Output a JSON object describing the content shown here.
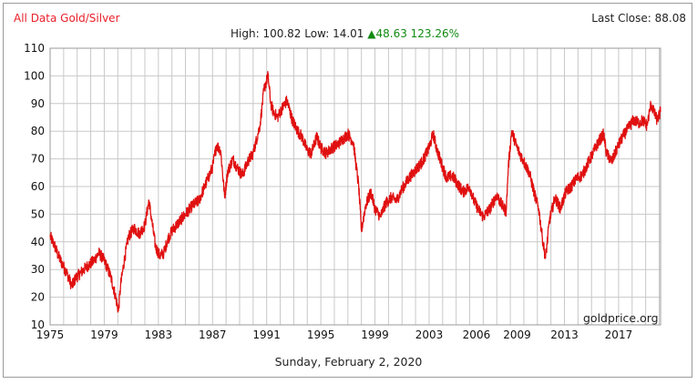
{
  "header": {
    "title": "All Data Gold/Silver",
    "last_close": "Last Close: 88.08",
    "stats_prefix": "High: 100.82 Low: 14.01 ",
    "change_arrow": "▲",
    "change_text": "48.63 123.26%"
  },
  "footer": {
    "date": "Sunday, February 2, 2020",
    "watermark": "goldprice.org"
  },
  "colors": {
    "title": "#e8202a",
    "line": "#e01010",
    "change": "#118a11",
    "grid": "#c8c8c8"
  },
  "chart_data": {
    "type": "line",
    "title": "All Data Gold/Silver",
    "xlabel": "",
    "ylabel": "",
    "x_tick_labels": [
      "1975",
      "1979",
      "1983",
      "1987",
      "1991",
      "1995",
      "1999",
      "2003",
      "2006",
      "2009",
      "2013",
      "2017"
    ],
    "x_ticks": [
      1975,
      1979,
      1983,
      1987,
      1991,
      1995,
      1999,
      2003,
      2006.5,
      2009.5,
      2013,
      2017
    ],
    "y_ticks": [
      10,
      20,
      30,
      40,
      50,
      60,
      70,
      80,
      90,
      100,
      110
    ],
    "xlim": [
      1975,
      2020.1
    ],
    "ylim": [
      10,
      110
    ],
    "grid": true,
    "series": [
      {
        "x": [
          1975.0,
          1975.3,
          1975.6,
          1976.0,
          1976.3,
          1976.6,
          1976.9,
          1977.3,
          1977.7,
          1978.2,
          1978.6,
          1978.9,
          1979.2,
          1979.5,
          1979.8,
          1980.05,
          1980.2,
          1980.5,
          1980.8,
          1981.2,
          1981.6,
          1982.0,
          1982.3,
          1982.5,
          1982.8,
          1983.1,
          1983.4,
          1983.7,
          1984.0,
          1984.5,
          1985.0,
          1985.5,
          1986.0,
          1986.5,
          1987.0,
          1987.3,
          1987.6,
          1987.9,
          1988.1,
          1988.5,
          1988.8,
          1989.2,
          1989.6,
          1990.0,
          1990.5,
          1990.8,
          1991.1,
          1991.3,
          1991.5,
          1991.8,
          1992.1,
          1992.5,
          1992.9,
          1993.3,
          1993.6,
          1994.0,
          1994.3,
          1994.7,
          1995.0,
          1995.4,
          1995.8,
          1996.2,
          1996.6,
          1997.0,
          1997.4,
          1997.8,
          1998.0,
          1998.3,
          1998.7,
          1999.0,
          1999.4,
          1999.8,
          2000.2,
          2000.6,
          2001.0,
          2001.5,
          2002.0,
          2002.5,
          2003.0,
          2003.3,
          2003.6,
          2004.0,
          2004.3,
          2004.7,
          2005.1,
          2005.5,
          2006.0,
          2006.3,
          2006.6,
          2007.0,
          2007.5,
          2008.0,
          2008.4,
          2008.7,
          2008.85,
          2009.1,
          2009.5,
          2010.0,
          2010.4,
          2010.8,
          2011.1,
          2011.35,
          2011.6,
          2011.9,
          2012.3,
          2012.7,
          2013.1,
          2013.5,
          2013.9,
          2014.3,
          2014.7,
          2015.1,
          2015.5,
          2015.9,
          2016.1,
          2016.5,
          2016.9,
          2017.3,
          2017.7,
          2018.1,
          2018.5,
          2018.8,
          2019.1,
          2019.4,
          2019.6,
          2019.85,
          2020.1
        ],
        "y": [
          42,
          39,
          35,
          31,
          28,
          24,
          27,
          29,
          31,
          33,
          36,
          34,
          31,
          27,
          21,
          15,
          24,
          34,
          42,
          45,
          43,
          46,
          55,
          48,
          38,
          35,
          36,
          41,
          44,
          47,
          50,
          53,
          55,
          61,
          67,
          75,
          73,
          56,
          65,
          70,
          67,
          64,
          69,
          72,
          82,
          95,
          100,
          90,
          87,
          85,
          88,
          91,
          84,
          80,
          78,
          73,
          72,
          78,
          74,
          72,
          74,
          75,
          77,
          79,
          76,
          60,
          44,
          53,
          58,
          52,
          49,
          54,
          56,
          55,
          59,
          63,
          66,
          69,
          74,
          79,
          73,
          67,
          63,
          64,
          61,
          58,
          60,
          55,
          52,
          49,
          52,
          57,
          53,
          51,
          67,
          80,
          74,
          69,
          65,
          57,
          52,
          42,
          34,
          48,
          56,
          52,
          58,
          60,
          63,
          64,
          68,
          72,
          76,
          79,
          72,
          69,
          74,
          78,
          81,
          84,
          83,
          84,
          82,
          90,
          87,
          84,
          87
        ]
      }
    ]
  }
}
